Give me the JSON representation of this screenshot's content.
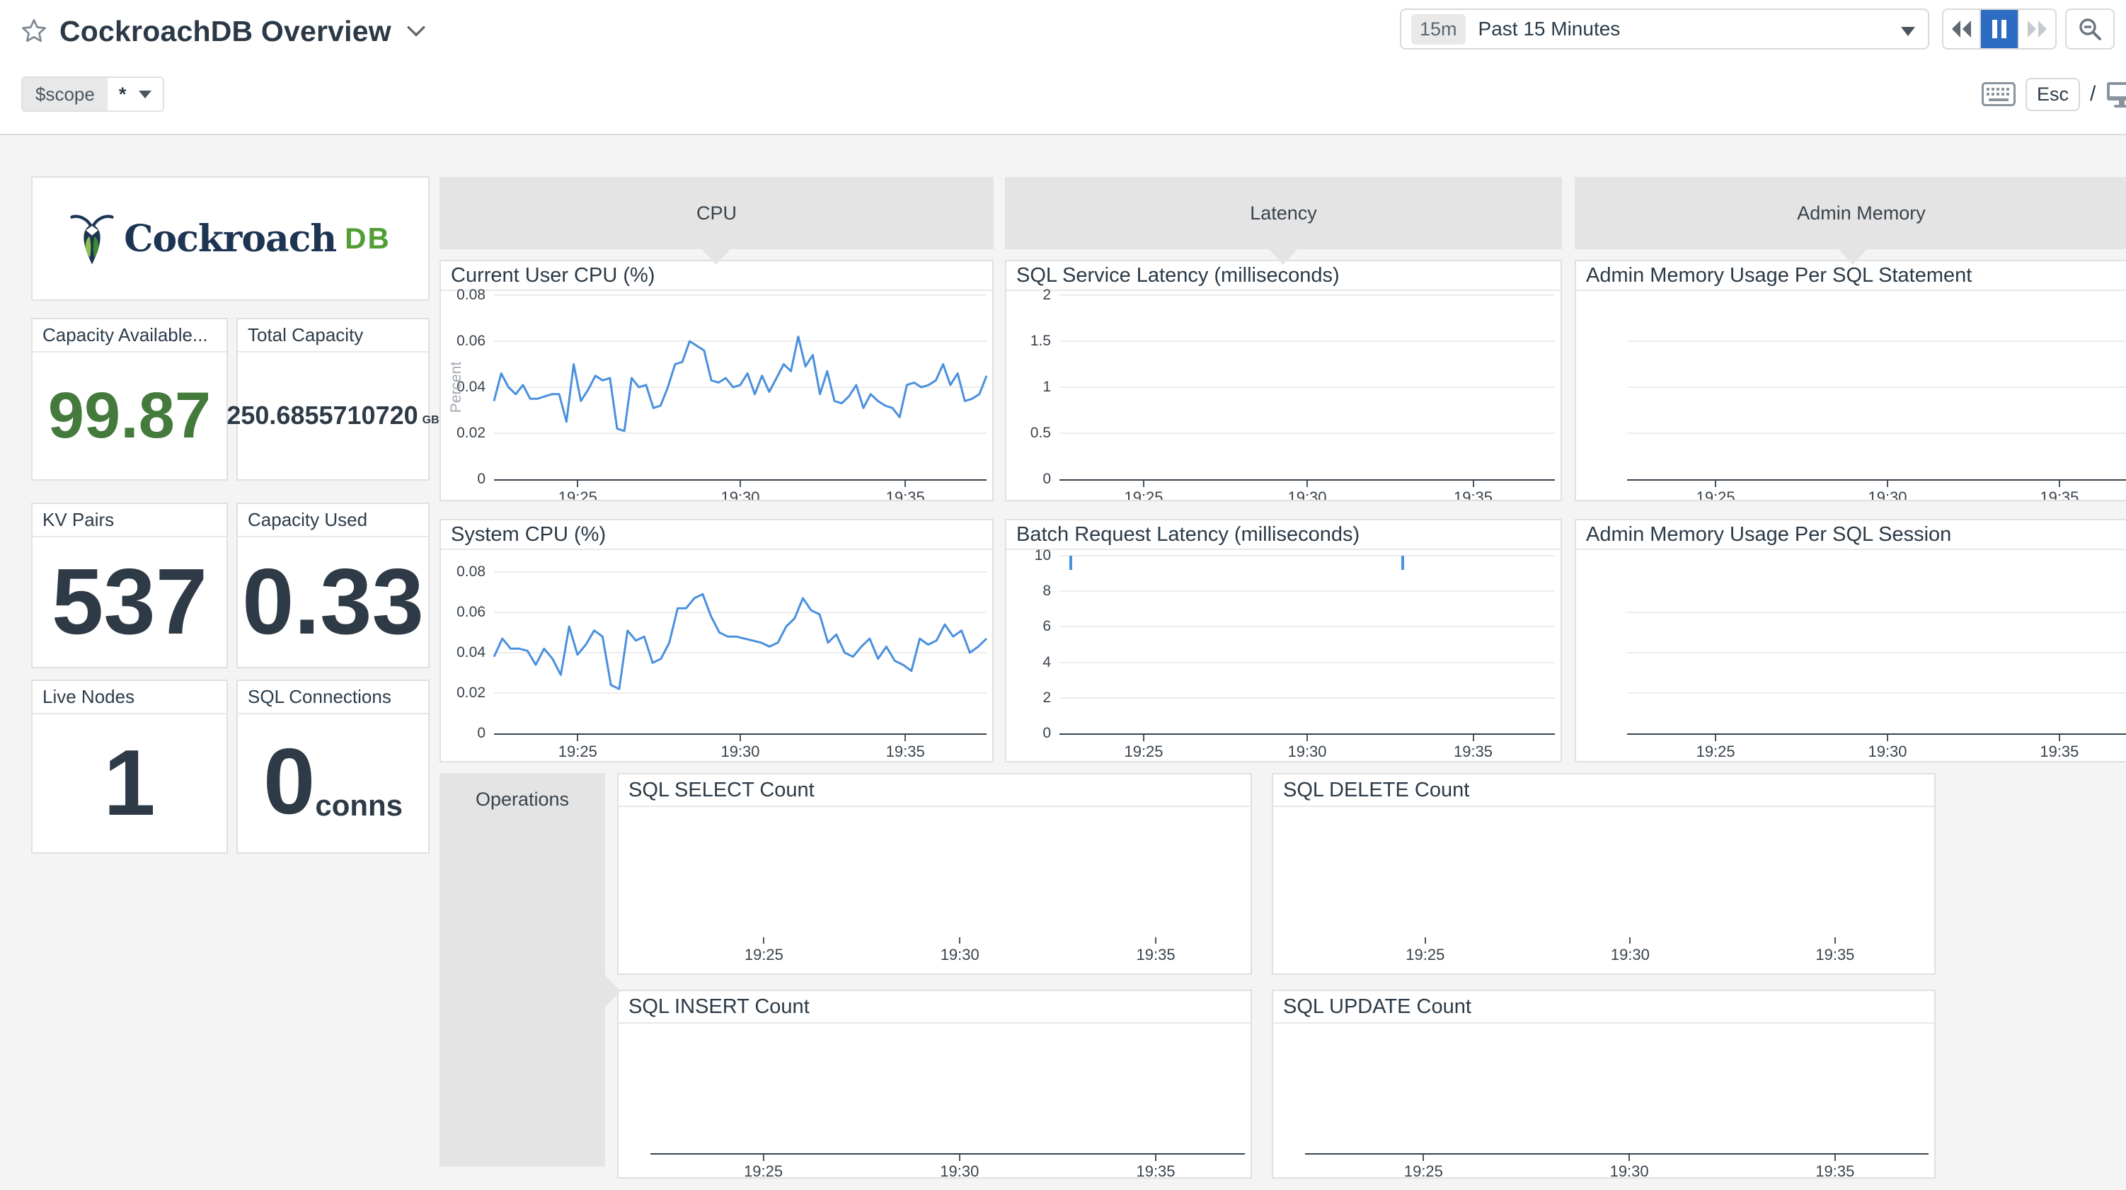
{
  "header": {
    "title": "CockroachDB Overview",
    "time": {
      "badge": "15m",
      "label": "Past 15 Minutes"
    },
    "scope": {
      "name": "$scope",
      "value": "*"
    },
    "esc_key": "Esc",
    "slash": "/"
  },
  "logo": {
    "word": "Cockroach",
    "db": "DB"
  },
  "colors": {
    "accent_blue": "#2c6cc2",
    "line_blue": "#4a90de",
    "value_green": "#447a3c",
    "value_dark": "#2e3a46",
    "logo_navy": "#1d3553",
    "logo_green": "#519e34"
  },
  "stat_cards": {
    "capacity_available": {
      "title": "Capacity Available...",
      "value": "99.87"
    },
    "total_capacity": {
      "title": "Total Capacity",
      "value": "250.6855710720",
      "unit": "GB"
    },
    "kv_pairs": {
      "title": "KV Pairs",
      "value": "537"
    },
    "capacity_used": {
      "title": "Capacity Used",
      "value": "0.33"
    },
    "live_nodes": {
      "title": "Live Nodes",
      "value": "1"
    },
    "sql_connections": {
      "title": "SQL Connections",
      "value": "0",
      "unit": "conns"
    }
  },
  "section_headers": {
    "cpu": "CPU",
    "latency": "Latency",
    "admin_memory": "Admin Memory",
    "operations": "Operations"
  },
  "charts": {
    "cpu_user": {
      "title": "Current User CPU (%)",
      "ylabel": "Percent",
      "y_ticks": [
        "0.08",
        "0.06",
        "0.04",
        "0.02",
        "0"
      ],
      "x_ticks": [
        "19:25",
        "19:30",
        "19:35"
      ],
      "ymax": 0.08,
      "series": [
        0.034,
        0.046,
        0.04,
        0.037,
        0.041,
        0.035,
        0.035,
        0.036,
        0.037,
        0.037,
        0.025,
        0.05,
        0.034,
        0.039,
        0.045,
        0.043,
        0.044,
        0.022,
        0.021,
        0.044,
        0.04,
        0.041,
        0.031,
        0.032,
        0.04,
        0.05,
        0.051,
        0.06,
        0.058,
        0.056,
        0.043,
        0.042,
        0.044,
        0.04,
        0.041,
        0.046,
        0.037,
        0.045,
        0.038,
        0.044,
        0.05,
        0.047,
        0.062,
        0.049,
        0.054,
        0.037,
        0.047,
        0.034,
        0.033,
        0.036,
        0.041,
        0.031,
        0.037,
        0.034,
        0.032,
        0.031,
        0.027,
        0.041,
        0.042,
        0.04,
        0.041,
        0.043,
        0.05,
        0.041,
        0.046,
        0.034,
        0.035,
        0.037,
        0.045
      ]
    },
    "cpu_system": {
      "title": "System CPU (%)",
      "y_ticks": [
        "0.08",
        "0.06",
        "0.04",
        "0.02",
        "0"
      ],
      "x_ticks": [
        "19:25",
        "19:30",
        "19:35"
      ],
      "ymax": 0.08,
      "series": [
        0.038,
        0.047,
        0.042,
        0.042,
        0.041,
        0.034,
        0.042,
        0.037,
        0.029,
        0.053,
        0.039,
        0.044,
        0.051,
        0.048,
        0.024,
        0.022,
        0.051,
        0.046,
        0.048,
        0.035,
        0.037,
        0.045,
        0.062,
        0.062,
        0.067,
        0.069,
        0.058,
        0.05,
        0.048,
        0.048,
        0.047,
        0.046,
        0.045,
        0.043,
        0.045,
        0.053,
        0.057,
        0.067,
        0.061,
        0.059,
        0.045,
        0.049,
        0.04,
        0.038,
        0.043,
        0.047,
        0.037,
        0.043,
        0.036,
        0.034,
        0.031,
        0.047,
        0.044,
        0.046,
        0.054,
        0.048,
        0.051,
        0.04,
        0.043,
        0.047
      ]
    },
    "latency_sql": {
      "title": "SQL Service Latency (milliseconds)",
      "y_ticks": [
        "2",
        "1.5",
        "1",
        "0.5",
        "0"
      ],
      "x_ticks": [
        "19:25",
        "19:30",
        "19:35"
      ]
    },
    "latency_batch": {
      "title": "Batch Request Latency (milliseconds)",
      "y_ticks": [
        "10",
        "8",
        "6",
        "4",
        "2",
        "0"
      ],
      "x_ticks": [
        "19:25",
        "19:30",
        "19:35"
      ],
      "spikes": [
        0.02,
        0.69
      ]
    },
    "admin_stmt": {
      "title": "Admin Memory Usage Per SQL Statement",
      "x_ticks": [
        "19:25",
        "19:30",
        "19:35"
      ]
    },
    "admin_session": {
      "title": "Admin Memory Usage Per SQL Session",
      "x_ticks": [
        "19:25",
        "19:30",
        "19:35"
      ]
    },
    "sql_select": {
      "title": "SQL SELECT Count",
      "x_ticks": [
        "19:25",
        "19:30",
        "19:35"
      ]
    },
    "sql_delete": {
      "title": "SQL DELETE Count",
      "x_ticks": [
        "19:25",
        "19:30",
        "19:35"
      ]
    },
    "sql_insert": {
      "title": "SQL INSERT Count",
      "x_ticks": [
        "19:25",
        "19:30",
        "19:35"
      ]
    },
    "sql_update": {
      "title": "SQL UPDATE Count",
      "x_ticks": [
        "19:25",
        "19:30",
        "19:35"
      ]
    }
  }
}
